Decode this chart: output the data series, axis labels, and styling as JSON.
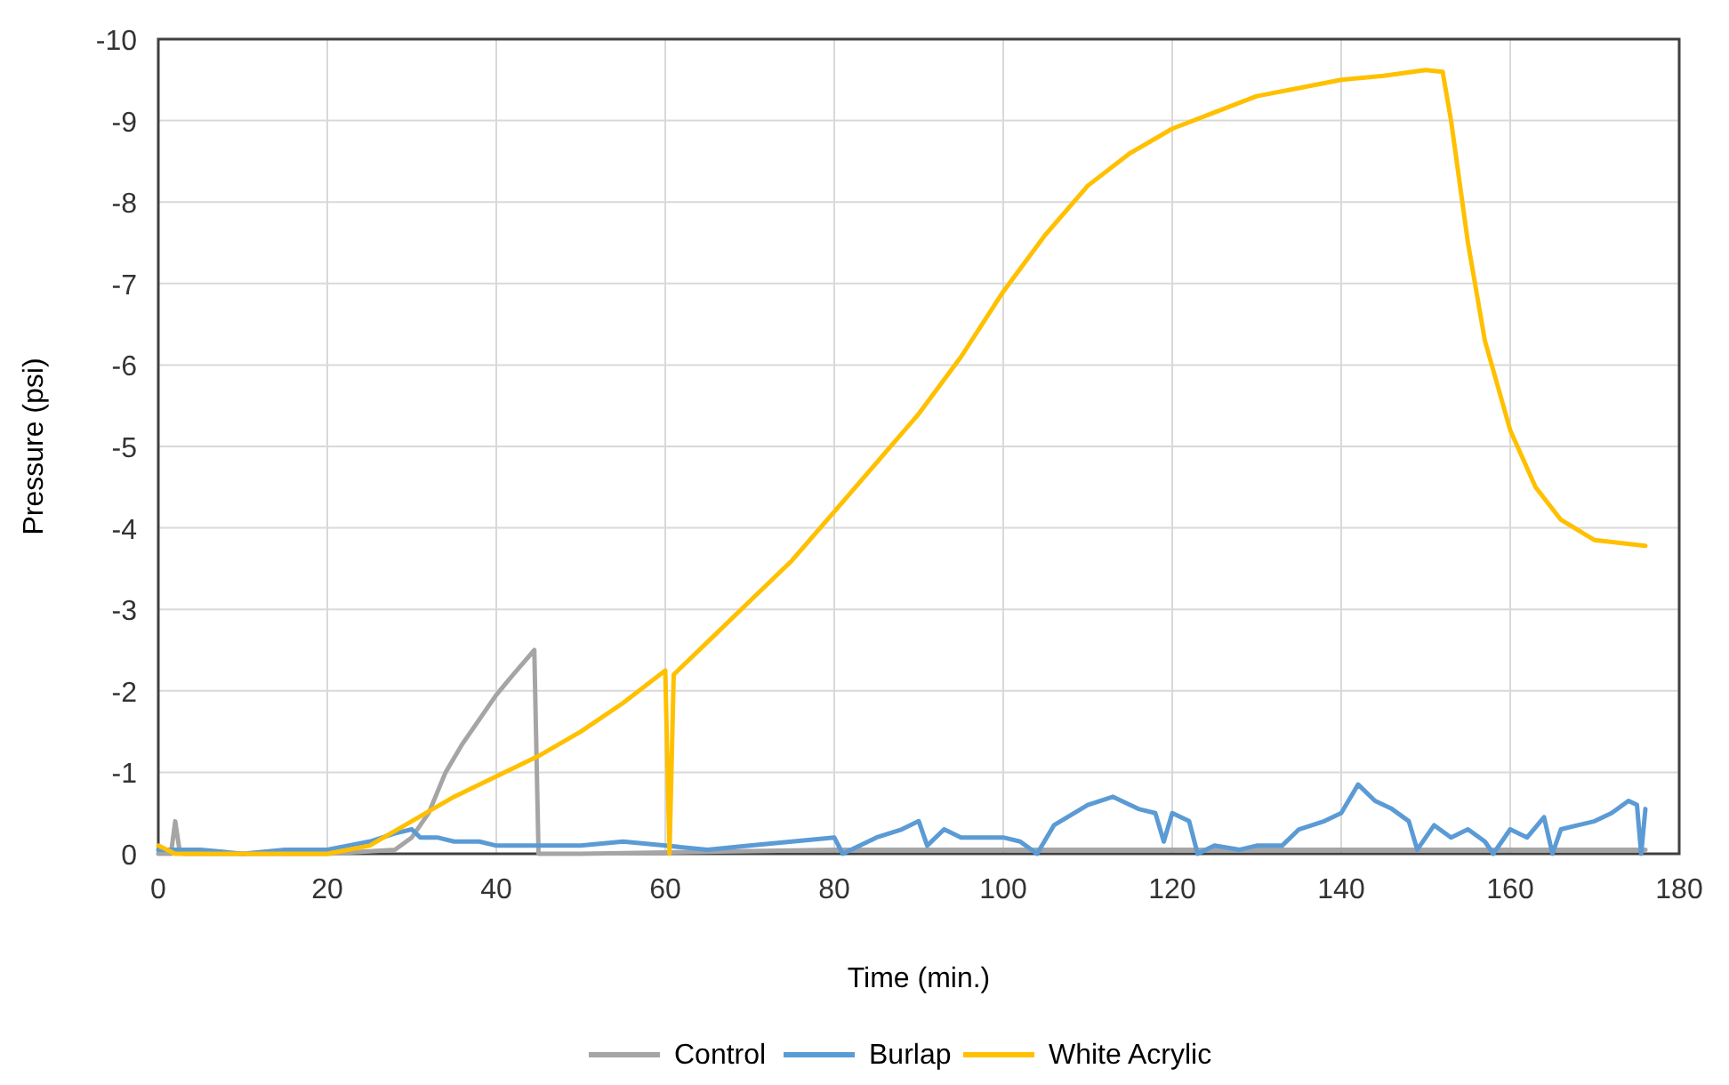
{
  "chart_data": {
    "type": "line",
    "xlabel": "Time (min.)",
    "ylabel": "Pressure (psi)",
    "xlim": [
      0,
      180
    ],
    "xticks": [
      0,
      20,
      40,
      60,
      80,
      100,
      120,
      140,
      160,
      180
    ],
    "ylim": [
      0,
      -10
    ],
    "yticks": [
      0,
      -1,
      -2,
      -3,
      -4,
      -5,
      -6,
      -7,
      -8,
      -9,
      -10
    ],
    "grid": true,
    "legend": "bottom",
    "line_style": "solid",
    "marker": "none",
    "series": [
      {
        "name": "Control",
        "color": "#a5a5a5",
        "x": [
          0,
          1.5,
          2,
          2.5,
          3,
          10,
          20,
          28,
          30,
          32,
          34,
          36,
          38,
          40,
          42,
          44.5,
          45,
          50,
          80,
          120,
          176
        ],
        "values": [
          0,
          0,
          -0.4,
          -0.05,
          0,
          0,
          0,
          -0.05,
          -0.2,
          -0.5,
          -1,
          -1.35,
          -1.65,
          -1.95,
          -2.2,
          -2.5,
          0,
          0,
          -0.05,
          -0.05,
          -0.05
        ]
      },
      {
        "name": "Burlap",
        "color": "#5b9bd5",
        "x": [
          0,
          5,
          10,
          15,
          20,
          25,
          28,
          30,
          31,
          33,
          35,
          38,
          40,
          45,
          50,
          55,
          60,
          65,
          70,
          75,
          80,
          81,
          85,
          88,
          90,
          91,
          93,
          95,
          100,
          102,
          104,
          106,
          110,
          113,
          116,
          118,
          119,
          120,
          122,
          123,
          125,
          128,
          130,
          133,
          135,
          138,
          140,
          142,
          144,
          146,
          148,
          149,
          151,
          153,
          155,
          157,
          158,
          160,
          162,
          164,
          165,
          166,
          168,
          170,
          172,
          174,
          175,
          175.5,
          176
        ],
        "values": [
          -0.05,
          -0.05,
          0,
          -0.05,
          -0.05,
          -0.15,
          -0.25,
          -0.3,
          -0.2,
          -0.2,
          -0.15,
          -0.15,
          -0.1,
          -0.1,
          -0.1,
          -0.15,
          -0.1,
          -0.05,
          -0.1,
          -0.15,
          -0.2,
          0,
          -0.2,
          -0.3,
          -0.4,
          -0.1,
          -0.3,
          -0.2,
          -0.2,
          -0.15,
          0,
          -0.35,
          -0.6,
          -0.7,
          -0.55,
          -0.5,
          -0.15,
          -0.5,
          -0.4,
          0,
          -0.1,
          -0.05,
          -0.1,
          -0.1,
          -0.3,
          -0.4,
          -0.5,
          -0.85,
          -0.65,
          -0.55,
          -0.4,
          -0.05,
          -0.35,
          -0.2,
          -0.3,
          -0.15,
          0,
          -0.3,
          -0.2,
          -0.45,
          0,
          -0.3,
          -0.35,
          -0.4,
          -0.5,
          -0.65,
          -0.6,
          0,
          -0.55
        ]
      },
      {
        "name": "White Acrylic",
        "color": "#ffc000",
        "x": [
          0,
          2,
          10,
          20,
          25,
          30,
          35,
          40,
          45,
          50,
          55,
          60,
          60.5,
          61,
          65,
          70,
          75,
          80,
          85,
          90,
          95,
          100,
          105,
          110,
          115,
          120,
          125,
          130,
          135,
          140,
          145,
          150,
          152,
          153,
          155,
          157,
          160,
          163,
          166,
          170,
          176
        ],
        "values": [
          -0.1,
          0,
          0,
          0,
          -0.1,
          -0.4,
          -0.7,
          -0.95,
          -1.2,
          -1.5,
          -1.85,
          -2.25,
          0,
          -2.2,
          -2.6,
          -3.1,
          -3.6,
          -4.2,
          -4.8,
          -5.4,
          -6.1,
          -6.9,
          -7.6,
          -8.2,
          -8.6,
          -8.9,
          -9.1,
          -9.3,
          -9.4,
          -9.5,
          -9.55,
          -9.62,
          -9.6,
          -9.0,
          -7.5,
          -6.3,
          -5.2,
          -4.5,
          -4.1,
          -3.85,
          -3.78
        ]
      }
    ]
  }
}
